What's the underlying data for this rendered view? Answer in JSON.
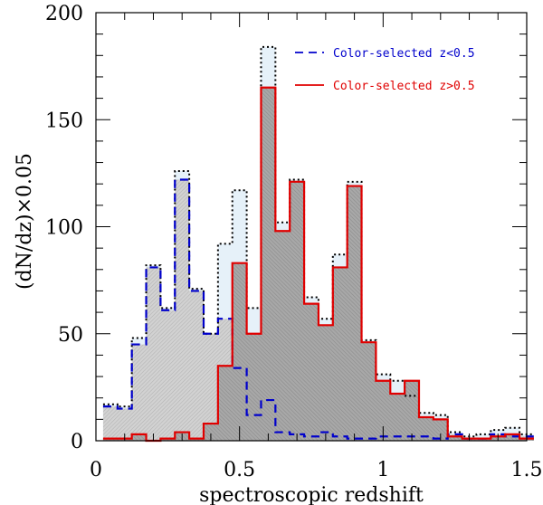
{
  "chart_data": {
    "type": "histogram",
    "xlabel": "spectroscopic redshift",
    "ylabel": "(dN/dz)×0.05",
    "xlim": [
      0,
      1.5
    ],
    "ylim": [
      0,
      200
    ],
    "bin_width": 0.05,
    "bin_start": 0.025,
    "x_ticks": [
      "0",
      "0.5",
      "1",
      "1.5"
    ],
    "y_ticks": [
      "0",
      "50",
      "100",
      "150",
      "200"
    ],
    "legend_position": "top-right",
    "series": [
      {
        "style": "dotted",
        "color": "#000000",
        "fill": "#e6f1f9",
        "values": [
          17,
          16,
          48,
          82,
          62,
          126,
          71,
          50,
          92,
          117,
          62,
          184,
          102,
          122,
          67,
          57,
          87,
          121,
          47,
          31,
          28,
          21,
          13,
          12,
          4,
          2,
          3,
          5,
          6,
          3
        ]
      },
      {
        "name": "Color-selected z<0.5",
        "style": "dashed",
        "color": "#0000cc",
        "fill": "#c8c8c8",
        "values": [
          16,
          15,
          45,
          81,
          61,
          122,
          70,
          50,
          57,
          34,
          12,
          19,
          4,
          3,
          2,
          4,
          2,
          1,
          1,
          2,
          2,
          2,
          2,
          1,
          3,
          1,
          1,
          3,
          2,
          2
        ]
      },
      {
        "name": "Color-selected z>0.5",
        "style": "solid",
        "color": "#e00000",
        "fill": "#9a9a9a",
        "values": [
          1,
          1,
          3,
          0,
          1,
          4,
          1,
          8,
          35,
          83,
          50,
          165,
          98,
          121,
          64,
          54,
          81,
          119,
          46,
          28,
          22,
          28,
          11,
          10,
          2,
          1,
          1,
          2,
          3,
          1
        ]
      }
    ]
  }
}
